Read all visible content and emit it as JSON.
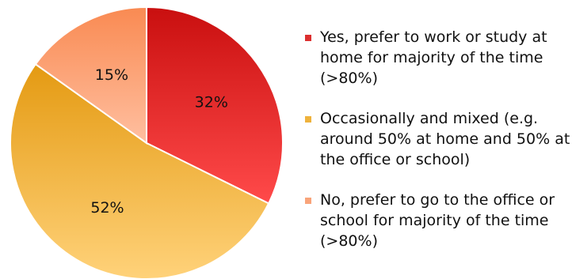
{
  "chart_data": {
    "type": "pie",
    "title": "",
    "slices": [
      {
        "label": "Yes, prefer to work or study at home for majority of the time (>80%)",
        "label_lines": [
          "Yes, prefer to work or study at",
          "home for majority of the time",
          "(>80%)"
        ],
        "value": 32,
        "display": "32%",
        "color": "#dc2f2f"
      },
      {
        "label": "Occasionally and mixed (e.g. around 50% at home and 50% at the office or school)",
        "label_lines": [
          "Occasionally and mixed (e.g.",
          "around 50% at home and 50% at",
          "the office or school)"
        ],
        "value": 52,
        "display": "52%",
        "color": "#efb23c"
      },
      {
        "label": "No, prefer to go to the office or school for majority of the time (>80%)",
        "label_lines": [
          "No, prefer to go to the office or",
          "school for majority of the time",
          "(>80%)"
        ],
        "value": 15,
        "display": "15%",
        "color": "#f9a47a"
      }
    ],
    "legend_position": "right",
    "start_angle": "top, clockwise"
  }
}
